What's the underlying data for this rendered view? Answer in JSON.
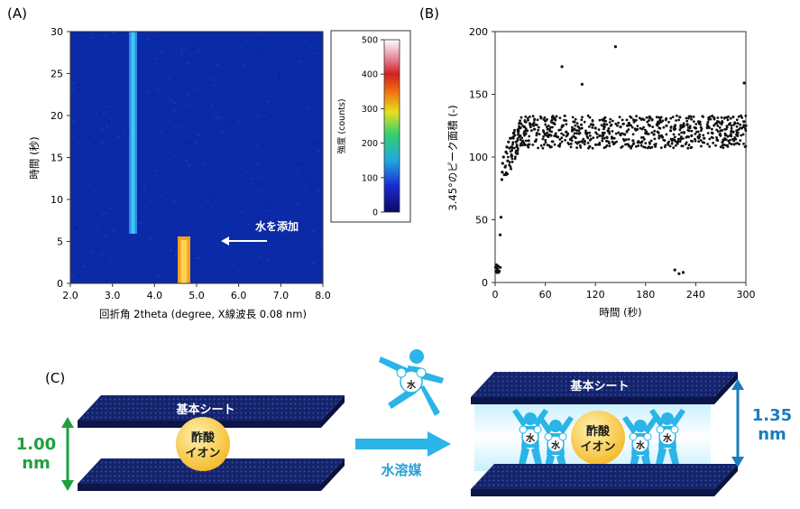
{
  "panel_a": {
    "tag": "(A)",
    "xlabel": "回折角 2theta (degree, X線波長 0.08 nm)",
    "ylabel": "時間 (秒)",
    "colorbar_label": "強度 (counts)",
    "colorbar_ticks": [
      "500",
      "400",
      "300",
      "200",
      "100",
      "0"
    ],
    "annotation": "水を添加"
  },
  "panel_b": {
    "tag": "(B)",
    "xlabel": "時間 (秒)",
    "ylabel": "3.45°のピーク面積 (-)"
  },
  "panel_c": {
    "tag": "(C)",
    "sheet_label": "基本シート",
    "ion_line1": "酢酸",
    "ion_line2": "イオン",
    "left_dist_value": "1.00",
    "left_dist_unit": "nm",
    "right_dist_value": "1.35",
    "right_dist_unit": "nm",
    "solvent_label": "水溶媒",
    "water_badge": "水",
    "colors": {
      "green": "#1fa040",
      "blue": "#1a7cc0",
      "cyan": "#2ab4e8",
      "sheet": "#15246a"
    }
  },
  "chart_data": [
    {
      "type": "heatmap",
      "title": "",
      "xlabel": "回折角 2theta (degree, X線波長 0.08 nm)",
      "ylabel": "時間 (秒)",
      "xlim": [
        2.0,
        8.0
      ],
      "ylim": [
        0,
        30
      ],
      "x_ticks": [
        "2.0",
        "3.0",
        "4.0",
        "5.0",
        "6.0",
        "7.0",
        "8.0"
      ],
      "y_ticks": [
        "0",
        "5",
        "10",
        "15",
        "20",
        "25",
        "30"
      ],
      "colorbar": {
        "label": "強度 (counts)",
        "range": [
          0,
          500
        ]
      },
      "features": [
        {
          "x": 3.45,
          "t_start": 6,
          "t_end": 30,
          "intensity": 200
        },
        {
          "x": 4.7,
          "t_start": 0,
          "t_end": 5.5,
          "intensity": 320
        }
      ],
      "annotation": {
        "text": "水を添加",
        "t": 5
      }
    },
    {
      "type": "scatter",
      "title": "",
      "xlabel": "時間 (秒)",
      "ylabel": "3.45°のピーク面積 (-)",
      "xlim": [
        0,
        300
      ],
      "ylim": [
        0,
        200
      ],
      "x_ticks": [
        "0",
        "60",
        "120",
        "180",
        "240",
        "300"
      ],
      "y_ticks": [
        "0",
        "50",
        "100",
        "150",
        "200"
      ],
      "points": [
        [
          0.5,
          12
        ],
        [
          1,
          9
        ],
        [
          1.5,
          14
        ],
        [
          2,
          8
        ],
        [
          2.5,
          11
        ],
        [
          3,
          10
        ],
        [
          3.5,
          13
        ],
        [
          4,
          8
        ],
        [
          5,
          9
        ],
        [
          6,
          12
        ],
        [
          6,
          38
        ],
        [
          7,
          52
        ],
        [
          8,
          82
        ],
        [
          8.5,
          88
        ],
        [
          9,
          95
        ],
        [
          10,
          100
        ],
        [
          11,
          86
        ],
        [
          12,
          92
        ],
        [
          13,
          104
        ],
        [
          14,
          108
        ],
        [
          15,
          97
        ],
        [
          16,
          112
        ],
        [
          18,
          115
        ],
        [
          20,
          108
        ],
        [
          22,
          119
        ],
        [
          25,
          112
        ],
        [
          28,
          121
        ],
        [
          30,
          117
        ],
        [
          35,
          124
        ],
        [
          40,
          113
        ],
        [
          45,
          126
        ],
        [
          50,
          119
        ],
        [
          55,
          131
        ],
        [
          60,
          118
        ],
        [
          65,
          122
        ],
        [
          70,
          127
        ],
        [
          75,
          116
        ],
        [
          80,
          124
        ],
        [
          80,
          172
        ],
        [
          85,
          120
        ],
        [
          90,
          114
        ],
        [
          95,
          128
        ],
        [
          100,
          121
        ],
        [
          104,
          158
        ],
        [
          110,
          119
        ],
        [
          115,
          126
        ],
        [
          120,
          123
        ],
        [
          125,
          117
        ],
        [
          130,
          129
        ],
        [
          135,
          121
        ],
        [
          140,
          115
        ],
        [
          144,
          188
        ],
        [
          150,
          124
        ],
        [
          155,
          118
        ],
        [
          160,
          127
        ],
        [
          165,
          113
        ],
        [
          170,
          122
        ],
        [
          175,
          130
        ],
        [
          180,
          119
        ],
        [
          185,
          125
        ],
        [
          190,
          118
        ],
        [
          195,
          128
        ],
        [
          200,
          116
        ],
        [
          205,
          125
        ],
        [
          210,
          121
        ],
        [
          215,
          10
        ],
        [
          220,
          7
        ],
        [
          225,
          8
        ],
        [
          230,
          126
        ],
        [
          235,
          117
        ],
        [
          240,
          123
        ],
        [
          245,
          128
        ],
        [
          250,
          115
        ],
        [
          255,
          124
        ],
        [
          260,
          119
        ],
        [
          265,
          127
        ],
        [
          270,
          121
        ],
        [
          275,
          114
        ],
        [
          280,
          126
        ],
        [
          285,
          120
        ],
        [
          290,
          117
        ],
        [
          295,
          123
        ],
        [
          298,
          159
        ],
        [
          300,
          125
        ]
      ]
    }
  ]
}
